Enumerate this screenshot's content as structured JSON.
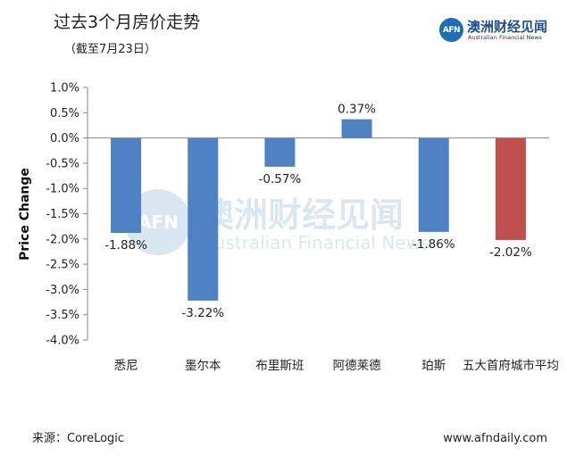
{
  "header": {
    "title": "过去3个月房价走势",
    "subtitle": "（截至7月23日）"
  },
  "brand": {
    "logo_text": "AFN",
    "name": "澳洲财经见闻",
    "tagline": "Australian Financial News"
  },
  "watermark": {
    "logo_text": "AFN",
    "name": "澳洲财经见闻",
    "tagline": "Australian Financial News"
  },
  "footer": {
    "source": "来源：CoreLogic",
    "url": "www.afndaily.com"
  },
  "colors": {
    "bar_default": "#4f81c5",
    "bar_highlight": "#c0504d",
    "axis": "#888888"
  },
  "chart_data": {
    "type": "bar",
    "title": "过去3个月房价走势",
    "xlabel": "",
    "ylabel": "Price Change",
    "ylim": [
      -4.0,
      1.0
    ],
    "yticks": [
      1.0,
      0.5,
      0.0,
      -0.5,
      -1.0,
      -1.5,
      -2.0,
      -2.5,
      -3.0,
      -3.5,
      -4.0
    ],
    "ytick_labels": [
      "1.0%",
      "0.5%",
      "0.0%",
      "-0.5%",
      "-1.0%",
      "-1.5%",
      "-2.0%",
      "-2.5%",
      "-3.0%",
      "-3.5%",
      "-4.0%"
    ],
    "grid": false,
    "legend": "none",
    "categories": [
      "悉尼",
      "墨尔本",
      "布里斯班",
      "阿德莱德",
      "珀斯",
      "五大首府城市平均"
    ],
    "values": [
      -1.88,
      -3.22,
      -0.57,
      0.37,
      -1.86,
      -2.02
    ],
    "data_labels": [
      "-1.88%",
      "-3.22%",
      "-0.57%",
      "0.37%",
      "-1.86%",
      "-2.02%"
    ],
    "highlight_index": 5
  }
}
